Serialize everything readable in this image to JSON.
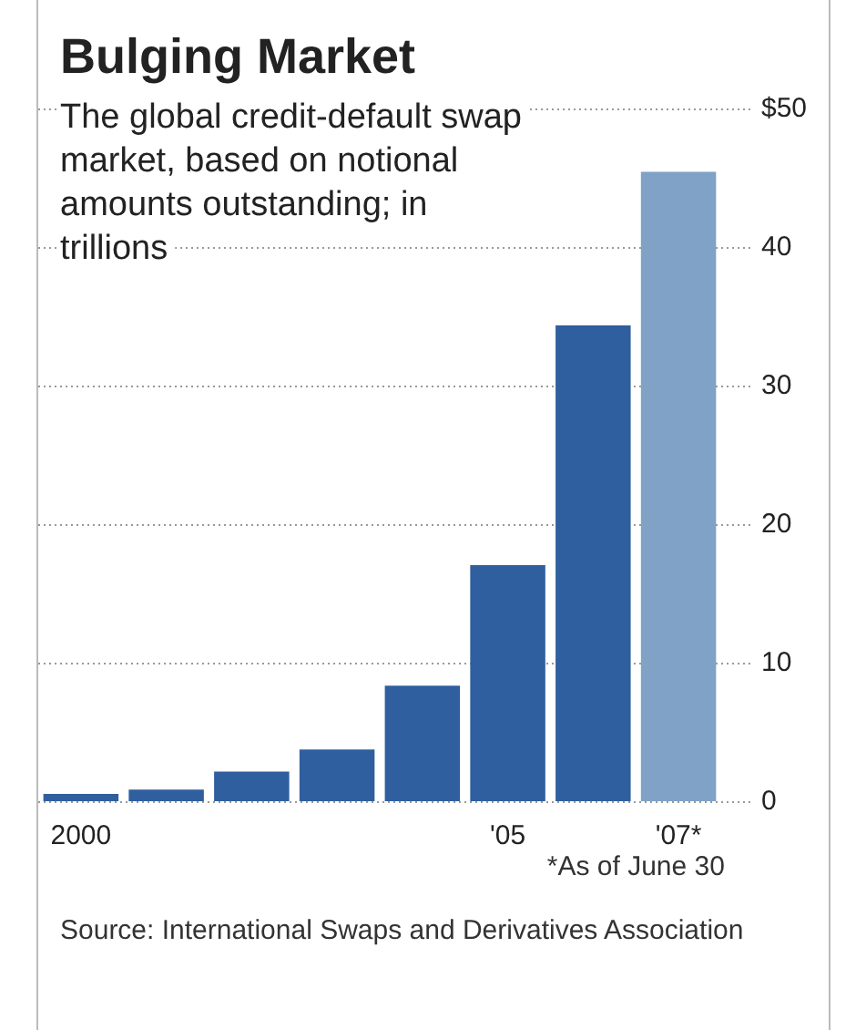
{
  "chart_data": {
    "type": "bar",
    "title": "Bulging Market",
    "subtitle": "The global credit-default swap market, based on notional amounts outstanding; in trillions",
    "categories": [
      "2000",
      null,
      null,
      null,
      null,
      "'05",
      null,
      "'07*"
    ],
    "values": [
      0.6,
      0.9,
      2.2,
      3.8,
      8.4,
      17.1,
      34.4,
      45.5
    ],
    "colors": [
      "#2f5f9e",
      "#2f5f9e",
      "#2f5f9e",
      "#2f5f9e",
      "#2f5f9e",
      "#2f5f9e",
      "#2f5f9e",
      "#7fa2c6"
    ],
    "ylim": [
      0,
      50
    ],
    "yticks": [
      0,
      10,
      20,
      30,
      40,
      {
        "value": 50,
        "label": "$50"
      }
    ],
    "grid": "y",
    "annotations": [
      "*As of June 30",
      "Source: International Swaps and Derivatives Association"
    ]
  }
}
